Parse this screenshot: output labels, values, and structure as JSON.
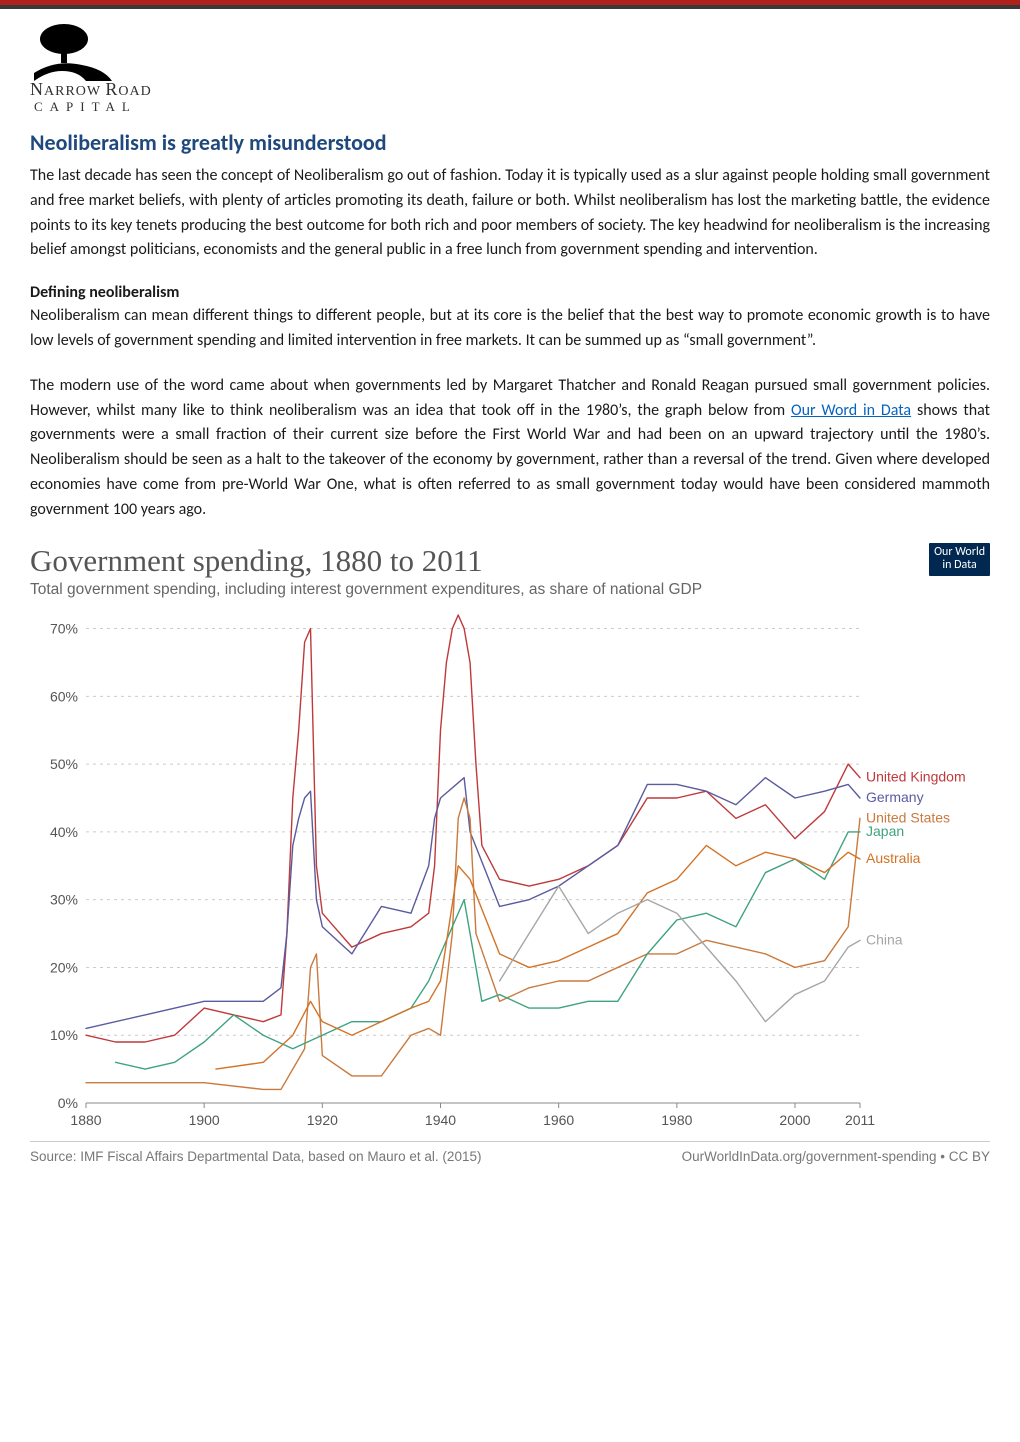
{
  "logo": {
    "line1_big": "N",
    "line1_rest1": "ARROW ",
    "line1_big2": "R",
    "line1_rest2": "OAD",
    "line2": "CAPITAL"
  },
  "title": "Neoliberalism is greatly misunderstood",
  "para1": "The last decade has seen the concept of Neoliberalism go out of fashion. Today it is typically used as a slur against people holding small government and free market beliefs, with plenty of articles promoting its death, failure or both. Whilst neoliberalism has lost the marketing battle, the evidence points to its key tenets producing the best outcome for both rich and poor members of society. The key headwind for neoliberalism is the increasing belief amongst politicians, economists and the general public in a free lunch from government spending and intervention.",
  "subhead": "Defining neoliberalism",
  "para2": "Neoliberalism can mean different things to different people, but at its core is the belief that the best way to promote economic growth is to have low levels of government spending and limited intervention in free markets. It can be summed up as “small government”.",
  "para3a": "The modern use of the word came about when governments led by Margaret Thatcher and Ronald Reagan pursued small government policies. However, whilst many like to think neoliberalism was an idea that took off in the 1980’s, the graph below from ",
  "link_text": "Our Word in Data",
  "para3b": " shows that governments were a small fraction of their current size before the First World War and had been on an upward trajectory until the 1980’s. Neoliberalism should be seen as a halt to the takeover of the economy by government, rather than a reversal of the trend. Given where developed economies have come from pre-World War One, what is often referred to as small government today would have been considered mammoth government 100 years ago.",
  "chart": {
    "title": "Government spending, 1880 to 2011",
    "subtitle": "Total government spending, including interest government expenditures, as share of national GDP",
    "badge_l1": "Our World",
    "badge_l2": "in Data",
    "source": "Source: IMF Fiscal Affairs Departmental Data, based on Mauro et al. (2015)",
    "attribution": "OurWorldInData.org/government-spending • CC BY",
    "y_ticks": [
      0,
      10,
      20,
      30,
      40,
      50,
      60,
      70
    ],
    "y_labels": [
      "0%",
      "10%",
      "20%",
      "30%",
      "40%",
      "50%",
      "60%",
      "70%"
    ],
    "x_ticks": [
      1880,
      1900,
      1920,
      1940,
      1960,
      1980,
      2000,
      2011
    ],
    "x_labels": [
      "1880",
      "1900",
      "1920",
      "1940",
      "1960",
      "1980",
      "2000",
      "2011"
    ],
    "x_range": [
      1880,
      2011
    ],
    "y_range": [
      0,
      72
    ],
    "grid_color": "#cccccc",
    "axis_color": "#888888",
    "tick_fontsize": 14,
    "label_color": "#555555",
    "line_width": 1.4,
    "legend": [
      {
        "label": "United Kingdom",
        "color": "#bf393b",
        "y": 48
      },
      {
        "label": "Germany",
        "color": "#5a5b9e",
        "y": 45
      },
      {
        "label": "United States",
        "color": "#c97a3e",
        "y": 42
      },
      {
        "label": "Japan",
        "color": "#3fa37f",
        "y": 40
      },
      {
        "label": "Australia",
        "color": "#d27327",
        "y": 36
      },
      {
        "label": "China",
        "color": "#a6a6a6",
        "y": 24
      }
    ],
    "series": {
      "uk": {
        "color": "#bf393b",
        "points": [
          [
            1880,
            10
          ],
          [
            1885,
            9
          ],
          [
            1890,
            9
          ],
          [
            1895,
            10
          ],
          [
            1900,
            14
          ],
          [
            1905,
            13
          ],
          [
            1910,
            12
          ],
          [
            1913,
            13
          ],
          [
            1914,
            25
          ],
          [
            1915,
            45
          ],
          [
            1916,
            55
          ],
          [
            1917,
            68
          ],
          [
            1918,
            70
          ],
          [
            1919,
            35
          ],
          [
            1920,
            28
          ],
          [
            1922,
            26
          ],
          [
            1925,
            23
          ],
          [
            1930,
            25
          ],
          [
            1935,
            26
          ],
          [
            1938,
            28
          ],
          [
            1939,
            35
          ],
          [
            1940,
            55
          ],
          [
            1941,
            65
          ],
          [
            1942,
            70
          ],
          [
            1943,
            72
          ],
          [
            1944,
            70
          ],
          [
            1945,
            65
          ],
          [
            1946,
            50
          ],
          [
            1947,
            38
          ],
          [
            1950,
            33
          ],
          [
            1955,
            32
          ],
          [
            1960,
            33
          ],
          [
            1965,
            35
          ],
          [
            1970,
            38
          ],
          [
            1975,
            45
          ],
          [
            1980,
            45
          ],
          [
            1985,
            46
          ],
          [
            1990,
            42
          ],
          [
            1995,
            44
          ],
          [
            2000,
            39
          ],
          [
            2005,
            43
          ],
          [
            2009,
            50
          ],
          [
            2011,
            48
          ]
        ]
      },
      "germany": {
        "color": "#5a5b9e",
        "points": [
          [
            1880,
            11
          ],
          [
            1890,
            13
          ],
          [
            1900,
            15
          ],
          [
            1910,
            15
          ],
          [
            1913,
            17
          ],
          [
            1914,
            25
          ],
          [
            1915,
            38
          ],
          [
            1916,
            42
          ],
          [
            1917,
            45
          ],
          [
            1918,
            46
          ],
          [
            1919,
            30
          ],
          [
            1920,
            26
          ],
          [
            1925,
            22
          ],
          [
            1930,
            29
          ],
          [
            1935,
            28
          ],
          [
            1938,
            35
          ],
          [
            1939,
            42
          ],
          [
            1940,
            45
          ],
          [
            1944,
            48
          ],
          [
            1945,
            40
          ],
          [
            1950,
            29
          ],
          [
            1955,
            30
          ],
          [
            1960,
            32
          ],
          [
            1965,
            35
          ],
          [
            1970,
            38
          ],
          [
            1975,
            47
          ],
          [
            1980,
            47
          ],
          [
            1985,
            46
          ],
          [
            1990,
            44
          ],
          [
            1995,
            48
          ],
          [
            2000,
            45
          ],
          [
            2005,
            46
          ],
          [
            2009,
            47
          ],
          [
            2011,
            45
          ]
        ]
      },
      "us": {
        "color": "#c97a3e",
        "points": [
          [
            1880,
            3
          ],
          [
            1890,
            3
          ],
          [
            1900,
            3
          ],
          [
            1910,
            2
          ],
          [
            1913,
            2
          ],
          [
            1917,
            8
          ],
          [
            1918,
            20
          ],
          [
            1919,
            22
          ],
          [
            1920,
            7
          ],
          [
            1925,
            4
          ],
          [
            1930,
            4
          ],
          [
            1935,
            10
          ],
          [
            1938,
            11
          ],
          [
            1940,
            10
          ],
          [
            1942,
            25
          ],
          [
            1943,
            42
          ],
          [
            1944,
            45
          ],
          [
            1945,
            42
          ],
          [
            1946,
            25
          ],
          [
            1950,
            15
          ],
          [
            1955,
            17
          ],
          [
            1960,
            18
          ],
          [
            1965,
            18
          ],
          [
            1970,
            20
          ],
          [
            1975,
            22
          ],
          [
            1980,
            22
          ],
          [
            1985,
            24
          ],
          [
            1990,
            23
          ],
          [
            1995,
            22
          ],
          [
            2000,
            20
          ],
          [
            2005,
            21
          ],
          [
            2009,
            26
          ],
          [
            2011,
            42
          ]
        ]
      },
      "japan": {
        "color": "#3fa37f",
        "points": [
          [
            1885,
            6
          ],
          [
            1890,
            5
          ],
          [
            1895,
            6
          ],
          [
            1900,
            9
          ],
          [
            1905,
            13
          ],
          [
            1910,
            10
          ],
          [
            1915,
            8
          ],
          [
            1920,
            10
          ],
          [
            1925,
            12
          ],
          [
            1930,
            12
          ],
          [
            1935,
            14
          ],
          [
            1938,
            18
          ],
          [
            1940,
            22
          ],
          [
            1944,
            30
          ],
          [
            1947,
            15
          ],
          [
            1950,
            16
          ],
          [
            1955,
            14
          ],
          [
            1960,
            14
          ],
          [
            1965,
            15
          ],
          [
            1970,
            15
          ],
          [
            1975,
            22
          ],
          [
            1980,
            27
          ],
          [
            1985,
            28
          ],
          [
            1990,
            26
          ],
          [
            1995,
            34
          ],
          [
            2000,
            36
          ],
          [
            2005,
            33
          ],
          [
            2009,
            40
          ],
          [
            2011,
            40
          ]
        ]
      },
      "australia": {
        "color": "#d27327",
        "points": [
          [
            1902,
            5
          ],
          [
            1910,
            6
          ],
          [
            1915,
            10
          ],
          [
            1918,
            15
          ],
          [
            1920,
            12
          ],
          [
            1925,
            10
          ],
          [
            1930,
            12
          ],
          [
            1935,
            14
          ],
          [
            1938,
            15
          ],
          [
            1940,
            18
          ],
          [
            1943,
            35
          ],
          [
            1945,
            33
          ],
          [
            1950,
            22
          ],
          [
            1955,
            20
          ],
          [
            1960,
            21
          ],
          [
            1965,
            23
          ],
          [
            1970,
            25
          ],
          [
            1975,
            31
          ],
          [
            1980,
            33
          ],
          [
            1985,
            38
          ],
          [
            1990,
            35
          ],
          [
            1995,
            37
          ],
          [
            2000,
            36
          ],
          [
            2005,
            34
          ],
          [
            2009,
            37
          ],
          [
            2011,
            36
          ]
        ]
      },
      "china": {
        "color": "#a6a6a6",
        "points": [
          [
            1950,
            18
          ],
          [
            1955,
            25
          ],
          [
            1960,
            32
          ],
          [
            1965,
            25
          ],
          [
            1970,
            28
          ],
          [
            1975,
            30
          ],
          [
            1980,
            28
          ],
          [
            1985,
            23
          ],
          [
            1990,
            18
          ],
          [
            1995,
            12
          ],
          [
            2000,
            16
          ],
          [
            2005,
            18
          ],
          [
            2009,
            23
          ],
          [
            2011,
            24
          ]
        ]
      }
    }
  }
}
